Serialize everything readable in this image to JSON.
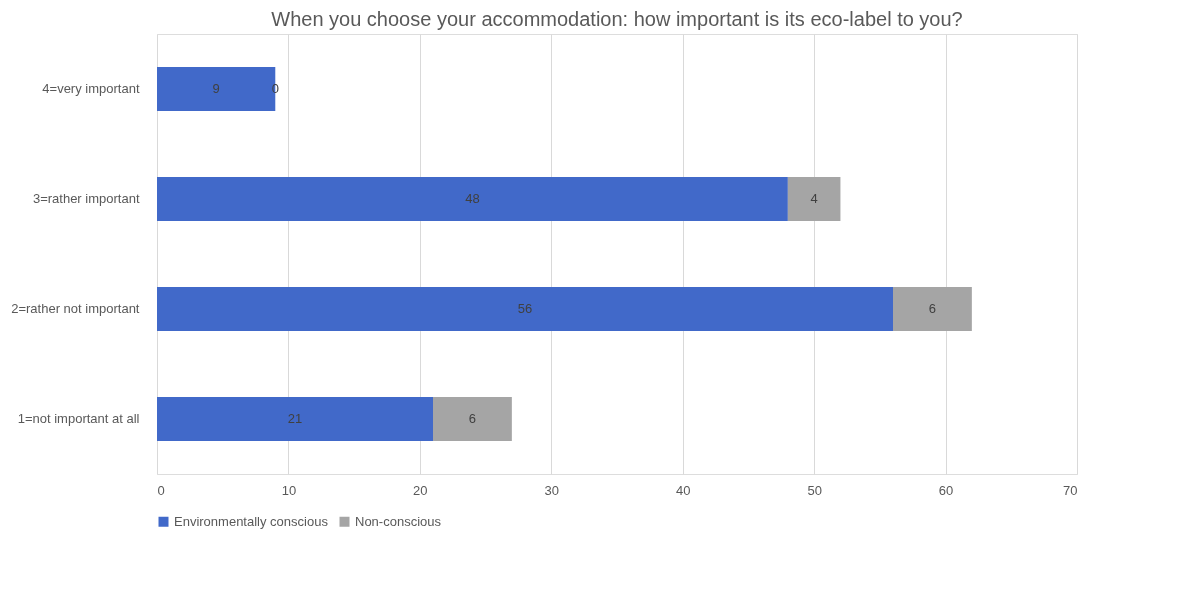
{
  "chart_data": {
    "type": "bar",
    "orientation": "horizontal",
    "stacked": true,
    "title": "When you choose your accommodation: how important is its eco-label to you?",
    "categories": [
      "4=very important",
      "3=rather important",
      "2=rather not important",
      "1=not important at all"
    ],
    "series": [
      {
        "name": "Environmentally conscious",
        "color": "#4169c9",
        "values": [
          9,
          48,
          56,
          21
        ]
      },
      {
        "name": "Non-conscious",
        "color": "#a5a5a5",
        "values": [
          0,
          4,
          6,
          6
        ]
      }
    ],
    "xlim": [
      0,
      70
    ],
    "xticks": [
      0,
      10,
      20,
      30,
      40,
      50,
      60,
      70
    ],
    "grid": "x",
    "legend": "bottom",
    "data_labels": true
  }
}
